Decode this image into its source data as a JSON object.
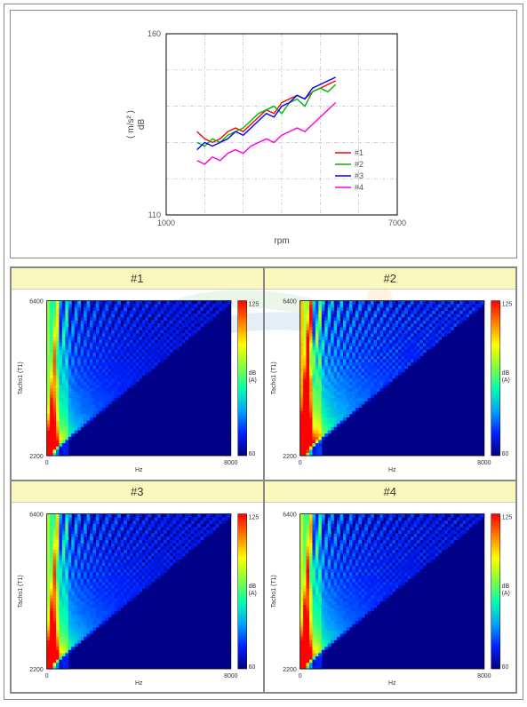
{
  "line_chart": {
    "type": "line",
    "xlabel": "rpm",
    "ylabel": "( m/s² )\ndB",
    "xlim": [
      1000,
      7000
    ],
    "ylim": [
      110,
      160
    ],
    "xticks": [
      1000,
      2000,
      3000,
      4000,
      5000,
      6000,
      7000
    ],
    "xtick_labels": [
      "1000",
      "",
      "",
      "",
      "",
      "",
      "7000"
    ],
    "yticks": [
      110,
      120,
      130,
      140,
      150,
      160
    ],
    "ytick_labels": [
      "110",
      "",
      "",
      "",
      "",
      "160"
    ],
    "grid_color": "#b8b8b8",
    "border_color": "#000000",
    "background_color": "#ffffff",
    "label_fontsize": 10,
    "tick_fontsize": 9,
    "line_width": 1.4,
    "legend_position": "bottom-right-inside",
    "series": [
      {
        "name": "#1",
        "color": "#ff0000",
        "x": [
          1800,
          2000,
          2200,
          2400,
          2600,
          2800,
          3000,
          3200,
          3400,
          3600,
          3800,
          4000,
          4200,
          4400,
          4600,
          4800,
          5000,
          5200,
          5400
        ],
        "y": [
          133,
          131,
          130,
          131,
          133,
          134,
          133,
          135,
          137,
          139,
          138,
          141,
          142,
          143,
          142,
          144,
          145,
          146,
          147
        ]
      },
      {
        "name": "#2",
        "color": "#00b400",
        "x": [
          1800,
          2000,
          2200,
          2400,
          2600,
          2800,
          3000,
          3200,
          3400,
          3600,
          3800,
          4000,
          4200,
          4400,
          4600,
          4800,
          5000,
          5200,
          5400
        ],
        "y": [
          130,
          129,
          131,
          130,
          132,
          133,
          134,
          136,
          138,
          139,
          140,
          138,
          141,
          142,
          140,
          144,
          145,
          144,
          146
        ]
      },
      {
        "name": "#3",
        "color": "#0000ff",
        "x": [
          1800,
          2000,
          2200,
          2400,
          2600,
          2800,
          3000,
          3200,
          3400,
          3600,
          3800,
          4000,
          4200,
          4400,
          4600,
          4800,
          5000,
          5200,
          5400
        ],
        "y": [
          128,
          130,
          129,
          130,
          131,
          133,
          132,
          134,
          136,
          138,
          137,
          140,
          141,
          143,
          142,
          145,
          146,
          147,
          148
        ]
      },
      {
        "name": "#4",
        "color": "#ff00dd",
        "x": [
          1800,
          2000,
          2200,
          2400,
          2600,
          2800,
          3000,
          3200,
          3400,
          3600,
          3800,
          4000,
          4200,
          4400,
          4600,
          4800,
          5000,
          5200,
          5400
        ],
        "y": [
          125,
          124,
          126,
          125,
          127,
          128,
          127,
          129,
          130,
          131,
          130,
          132,
          133,
          134,
          133,
          135,
          137,
          139,
          141
        ]
      }
    ]
  },
  "spectrograms": {
    "type": "spectrogram-grid",
    "rows": 2,
    "cols": 2,
    "header_bg": "#fbf8bd",
    "header_fontsize": 13,
    "labels": [
      "#1",
      "#2",
      "#3",
      "#4"
    ],
    "xlabel": "Hz",
    "ylabel": "Tacho1 (T1)",
    "xlim": [
      0,
      8000
    ],
    "ylim": [
      2200,
      6400
    ],
    "colorbar_label": "dB\n(A)",
    "colorbar_min": 60,
    "colorbar_max": 125,
    "colorbar_colors": [
      "#000080",
      "#0020ff",
      "#00a0ff",
      "#00ffb0",
      "#80ff40",
      "#ffff00",
      "#ff8000",
      "#ff0000"
    ],
    "background_color": "#000088",
    "axis_fontsize": 7,
    "intensity_scale": [
      1.0,
      1.35,
      1.05,
      1.1
    ]
  },
  "watermark": {
    "colors": [
      "#5dbb54",
      "#2f7ec2",
      "#ff9a00"
    ]
  }
}
